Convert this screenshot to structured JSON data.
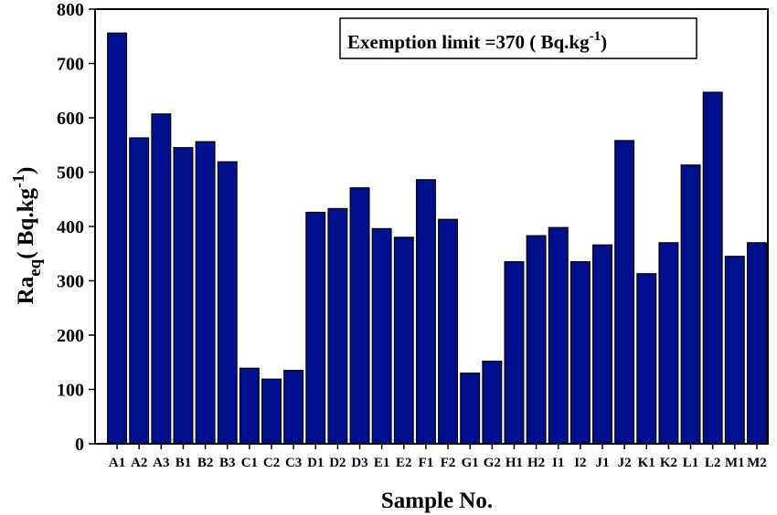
{
  "chart_data": {
    "type": "bar",
    "title": "",
    "xlabel": "Sample No.",
    "ylabel": {
      "main": "Ra",
      "sub": "eq",
      "paren_open": "( Bq.kg",
      "sup": "-1",
      "paren_close": ")"
    },
    "ylim": [
      0,
      800
    ],
    "yticks": [
      0,
      100,
      200,
      300,
      400,
      500,
      600,
      700,
      800
    ],
    "categories": [
      "A1",
      "A2",
      "A3",
      "B1",
      "B2",
      "B3",
      "C1",
      "C2",
      "C3",
      "D1",
      "D2",
      "D3",
      "E1",
      "E2",
      "F1",
      "F2",
      "G1",
      "G2",
      "H1",
      "H2",
      "I1",
      "I2",
      "J1",
      "J2",
      "K1",
      "K2",
      "L1",
      "L2",
      "M1",
      "M2"
    ],
    "values": [
      756,
      563,
      607,
      545,
      556,
      519,
      139,
      119,
      135,
      426,
      433,
      471,
      396,
      380,
      486,
      413,
      130,
      152,
      335,
      383,
      398,
      335,
      366,
      558,
      313,
      370,
      513,
      647,
      345,
      370
    ],
    "bar_color": "#000f8c",
    "grid": false,
    "annotation": {
      "text": "Exemption limit =370 ( Bq.kg",
      "sup": "-1",
      "close": ")",
      "placement": "top-right"
    }
  }
}
